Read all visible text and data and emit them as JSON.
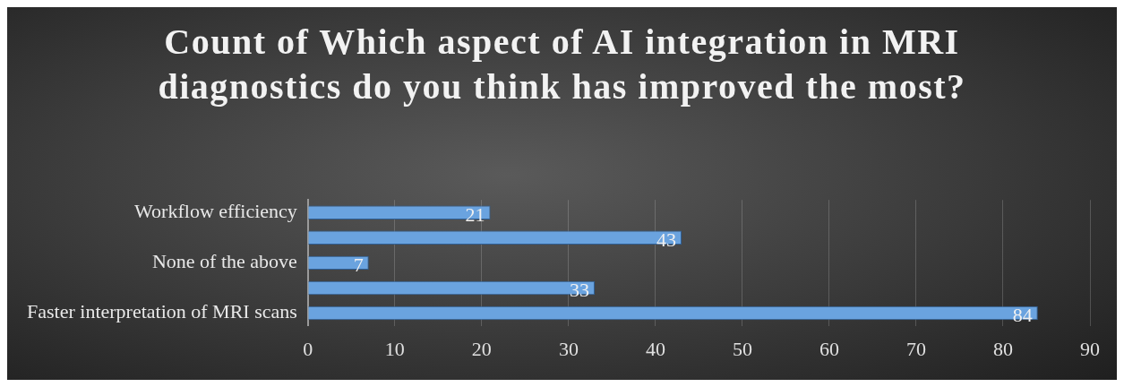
{
  "chart_data": {
    "type": "bar",
    "orientation": "horizontal",
    "title": "Count of Which aspect of AI integration in MRI diagnostics do you think has improved the most?",
    "categories": [
      "Workflow efficiency",
      null,
      "None of the above",
      null,
      "Faster interpretation of MRI scans"
    ],
    "values": [
      21,
      43,
      7,
      33,
      84
    ],
    "color": "#6aa3df",
    "xlim": [
      0,
      90
    ],
    "xticks": [
      0,
      10,
      20,
      30,
      40,
      50,
      60,
      70,
      80,
      90
    ],
    "grid": "x",
    "data_labels": true,
    "legend": false
  }
}
